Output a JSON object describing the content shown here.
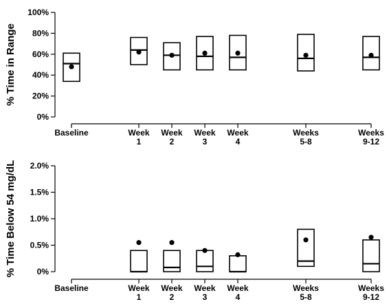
{
  "chart_data": [
    {
      "type": "box",
      "ylabel": "% Time in Range",
      "ylim": [
        0,
        100
      ],
      "yticks": [
        "0%",
        "20%",
        "40%",
        "60%",
        "80%",
        "100%"
      ],
      "categories": [
        {
          "line1": "Baseline",
          "line2": ""
        },
        {
          "line1": "Week",
          "line2": "1"
        },
        {
          "line1": "Week",
          "line2": "2"
        },
        {
          "line1": "Week",
          "line2": "3"
        },
        {
          "line1": "Week",
          "line2": "4"
        },
        {
          "line1": "Weeks",
          "line2": "5-8"
        },
        {
          "line1": "Weeks",
          "line2": "9-12"
        }
      ],
      "q1": [
        34,
        50,
        45,
        45,
        45,
        44,
        45
      ],
      "median": [
        51,
        64,
        59,
        58,
        57,
        56,
        57
      ],
      "q3": [
        61,
        76,
        71,
        77,
        78,
        79,
        77
      ],
      "mean": [
        48,
        62,
        59,
        61,
        61,
        59,
        59
      ]
    },
    {
      "type": "box",
      "ylabel": "% Time Below 54 mg/dL",
      "ylim": [
        0,
        2
      ],
      "yticks": [
        "0%",
        "0.5%",
        "1.0%",
        "1.5%",
        "2.0%"
      ],
      "categories": [
        {
          "line1": "Baseline",
          "line2": ""
        },
        {
          "line1": "Week",
          "line2": "1"
        },
        {
          "line1": "Week",
          "line2": "2"
        },
        {
          "line1": "Week",
          "line2": "3"
        },
        {
          "line1": "Week",
          "line2": "4"
        },
        {
          "line1": "Weeks",
          "line2": "5-8"
        },
        {
          "line1": "Weeks",
          "line2": "9-12"
        }
      ],
      "q1": [
        null,
        0.0,
        0.0,
        0.0,
        0.0,
        0.1,
        0.0
      ],
      "median": [
        null,
        0.0,
        0.08,
        0.1,
        0.0,
        0.2,
        0.15
      ],
      "q3": [
        null,
        0.4,
        0.4,
        0.4,
        0.3,
        0.8,
        0.6
      ],
      "mean": [
        null,
        0.55,
        0.55,
        0.4,
        0.32,
        0.6,
        0.65
      ]
    }
  ]
}
